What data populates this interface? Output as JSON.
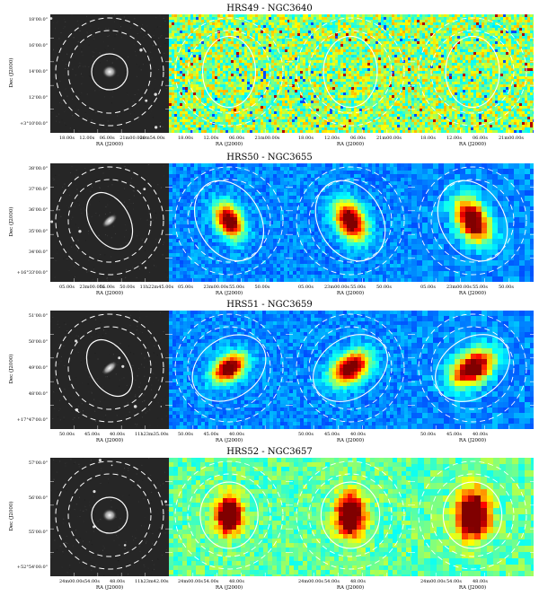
{
  "rows": [
    {
      "title": "HRS49 - NGC3640",
      "ylabel": "Dec (J2000)",
      "yticks": [
        "18'00.0\"",
        "16'00.0\"",
        "14'00.0\"",
        "12'00.0\"",
        "+3°10'00.0\""
      ],
      "xticks": [
        "18.00s",
        "12.00s",
        "06.00s",
        "21m00.00s",
        "20m54.00s"
      ],
      "xlabel": "RA (J2000)",
      "style": "noisy",
      "optical_ellipse": "round",
      "map_ellipse_rx": 0.22,
      "map_ellipse_ry": 0.3,
      "map_ellipse_rot": 0,
      "blob": 0
    },
    {
      "title": "HRS50 - NGC3655",
      "ylabel": "Dec (J2000)",
      "yticks": [
        "38'00.0\"",
        "37'00.0\"",
        "36'00.0\"",
        "35'00.0\"",
        "34'00.0\"",
        "+16°33'00.0\""
      ],
      "xticks": [
        "05.00s",
        "23m00.00s",
        "55.00s",
        "50.00s",
        "11h22m45.00s"
      ],
      "xlabel": "RA (J2000)",
      "style": "blue",
      "optical_ellipse": "tilted",
      "map_ellipse_rx": 0.26,
      "map_ellipse_ry": 0.36,
      "map_ellipse_rot": -30,
      "blob": 1
    },
    {
      "title": "HRS51 - NGC3659",
      "ylabel": "Dec (J2000)",
      "yticks": [
        "51'00.0\"",
        "50'00.0\"",
        "49'00.0\"",
        "48'00.0\"",
        "+17°47'00.0\""
      ],
      "xticks": [
        "50.00s",
        "45.00s",
        "40.00s",
        "11h23m35.00s"
      ],
      "xlabel": "RA (J2000)",
      "style": "blue",
      "optical_ellipse": "tilted",
      "map_ellipse_rx": 0.33,
      "map_ellipse_ry": 0.25,
      "map_ellipse_rot": -35,
      "blob": 2
    },
    {
      "title": "HRS52 - NGC3657",
      "ylabel": "Dec (J2000)",
      "yticks": [
        "57'00.0\"",
        "56'00.0\"",
        "55'00.0\"",
        "+52°54'00.0\""
      ],
      "xticks": [
        "24m00.00s",
        "54.00s",
        "48.00s",
        "11h23m42.00s"
      ],
      "xlabel": "RA (J2000)",
      "style": "green",
      "optical_ellipse": "round",
      "map_ellipse_rx": 0.24,
      "map_ellipse_ry": 0.28,
      "map_ellipse_rot": 0,
      "blob": 3
    }
  ],
  "map_xticks": [
    [
      "18.00s",
      "12.00s",
      "06.00s",
      "21m00.00s"
    ],
    [
      "05.00s",
      "23m00.00s",
      "55.00s",
      "50.00s"
    ],
    [
      "50.00s",
      "45.00s",
      "40.00s"
    ],
    [
      "24m00.00s",
      "54.00s",
      "48.00s"
    ]
  ],
  "colors": {
    "optical_bg": "#262626",
    "contour": "#ffffff"
  }
}
